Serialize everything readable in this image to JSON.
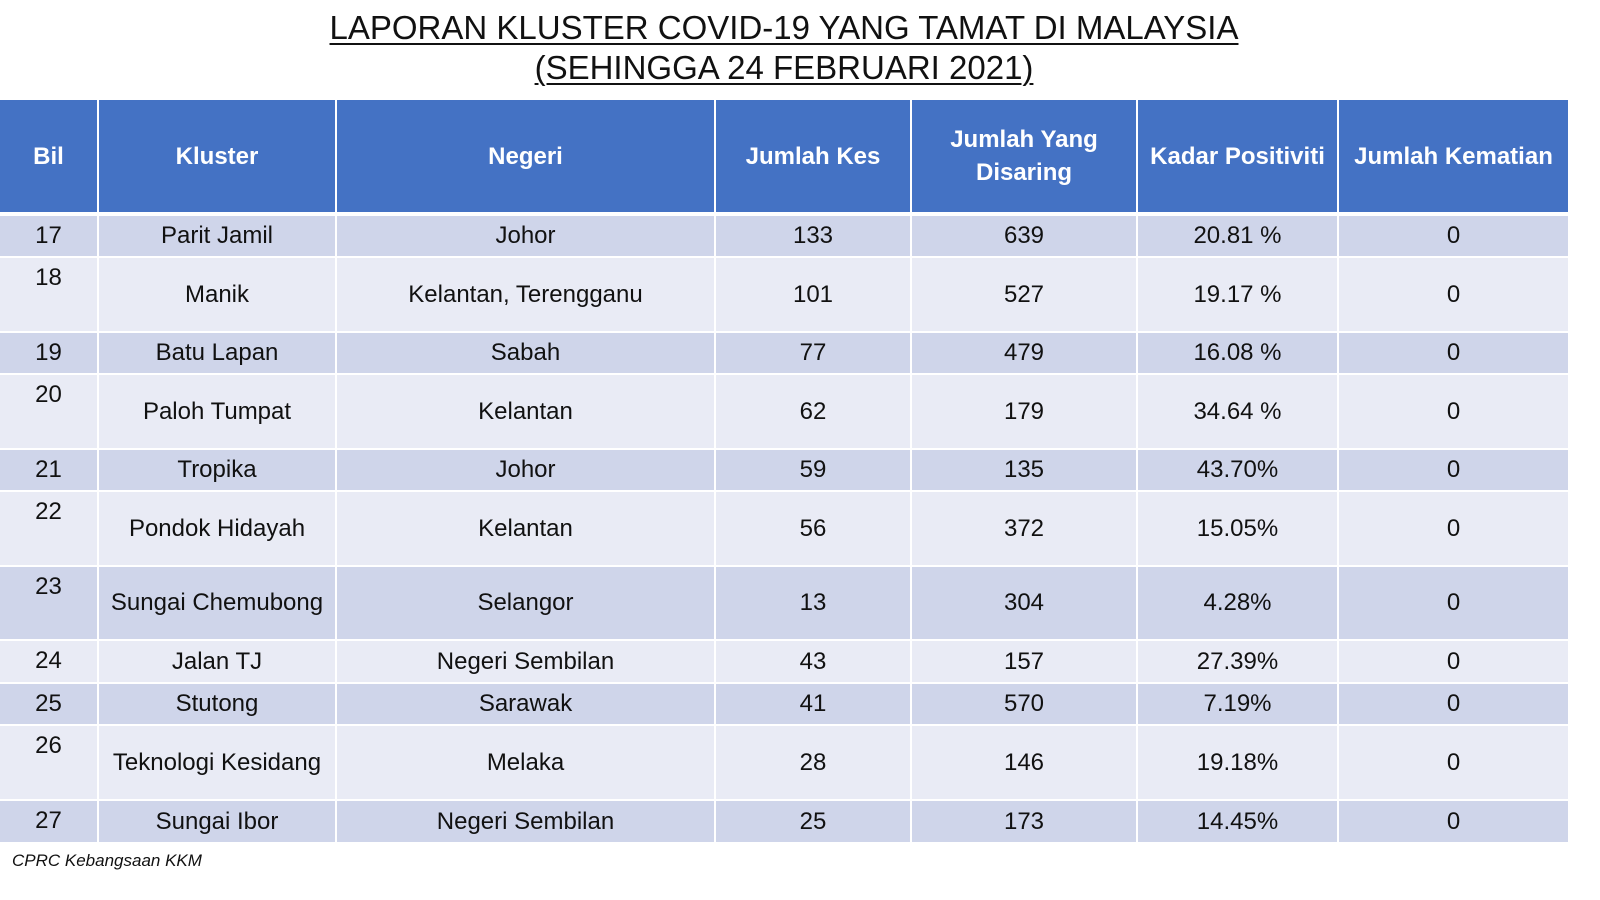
{
  "title": {
    "line1": "LAPORAN KLUSTER COVID-19 YANG TAMAT DI MALAYSIA",
    "line2": "(SEHINGGA  24 FEBRUARI 2021)"
  },
  "table": {
    "headers": {
      "bil": "Bil",
      "kluster": "Kluster",
      "negeri": "Negeri",
      "jumlah_kes": "Jumlah Kes",
      "jumlah_disaring": "Jumlah Yang Disaring",
      "kadar_positiviti": "Kadar Positiviti",
      "jumlah_kematian": "Jumlah Kematian"
    },
    "rows": [
      {
        "bil": "17",
        "kluster": "Parit Jamil",
        "negeri": "Johor",
        "kes": "133",
        "disaring": "639",
        "positiviti": "20.81 %",
        "kematian": "0"
      },
      {
        "bil": "18",
        "kluster": "Manik",
        "negeri": "Kelantan, Terengganu",
        "kes": "101",
        "disaring": "527",
        "positiviti": "19.17 %",
        "kematian": "0"
      },
      {
        "bil": "19",
        "kluster": "Batu Lapan",
        "negeri": "Sabah",
        "kes": "77",
        "disaring": "479",
        "positiviti": "16.08 %",
        "kematian": "0"
      },
      {
        "bil": "20",
        "kluster": "Paloh Tumpat",
        "negeri": "Kelantan",
        "kes": "62",
        "disaring": "179",
        "positiviti": "34.64 %",
        "kematian": "0"
      },
      {
        "bil": "21",
        "kluster": "Tropika",
        "negeri": "Johor",
        "kes": "59",
        "disaring": "135",
        "positiviti": "43.70%",
        "kematian": "0"
      },
      {
        "bil": "22",
        "kluster": "Pondok Hidayah",
        "negeri": "Kelantan",
        "kes": "56",
        "disaring": "372",
        "positiviti": "15.05%",
        "kematian": "0"
      },
      {
        "bil": "23",
        "kluster": "Sungai Chemubong",
        "negeri": "Selangor",
        "kes": "13",
        "disaring": "304",
        "positiviti": "4.28%",
        "kematian": "0"
      },
      {
        "bil": "24",
        "kluster": "Jalan TJ",
        "negeri": "Negeri Sembilan",
        "kes": "43",
        "disaring": "157",
        "positiviti": "27.39%",
        "kematian": "0"
      },
      {
        "bil": "25",
        "kluster": "Stutong",
        "negeri": "Sarawak",
        "kes": "41",
        "disaring": "570",
        "positiviti": "7.19%",
        "kematian": "0"
      },
      {
        "bil": "26",
        "kluster": "Teknologi Kesidang",
        "negeri": "Melaka",
        "kes": "28",
        "disaring": "146",
        "positiviti": "19.18%",
        "kematian": "0"
      },
      {
        "bil": "27",
        "kluster": "Sungai Ibor",
        "negeri": "Negeri Sembilan",
        "kes": "25",
        "disaring": "173",
        "positiviti": "14.45%",
        "kematian": "0"
      }
    ]
  },
  "footnote": "CPRC Kebangsaan KKM",
  "colors": {
    "header_bg": "#4472c4",
    "row_band_dark": "#cfd5ea",
    "row_band_light": "#e9ebf5"
  }
}
